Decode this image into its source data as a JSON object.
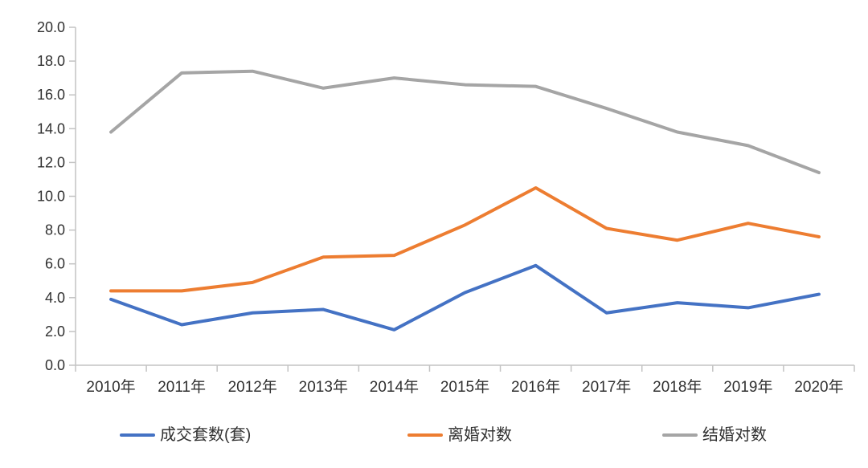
{
  "chart_data": {
    "type": "line",
    "title": "",
    "categories": [
      "2010年",
      "2011年",
      "2012年",
      "2013年",
      "2014年",
      "2015年",
      "2016年",
      "2017年",
      "2018年",
      "2019年",
      "2020年"
    ],
    "series": [
      {
        "name": "成交套数(套)",
        "color": "#4472C4",
        "values": [
          3.9,
          2.4,
          3.1,
          3.3,
          2.1,
          4.3,
          5.9,
          3.1,
          3.7,
          3.4,
          4.2
        ]
      },
      {
        "name": "离婚对数",
        "color": "#ED7D31",
        "values": [
          4.4,
          4.4,
          4.9,
          6.4,
          6.5,
          8.3,
          10.5,
          8.1,
          7.4,
          8.4,
          7.6
        ]
      },
      {
        "name": "结婚对数",
        "color": "#A5A5A5",
        "values": [
          13.8,
          17.3,
          17.4,
          16.4,
          17.0,
          16.6,
          16.5,
          15.2,
          13.8,
          13.0,
          11.4
        ]
      }
    ],
    "xlabel": "",
    "ylabel": "",
    "ylim": [
      0,
      20
    ],
    "ytick_step": 2,
    "ytick_labels": [
      "20.0",
      "18.0",
      "16.0",
      "14.0",
      "12.0",
      "10.0",
      "8.0",
      "6.0",
      "4.0",
      "2.0",
      "0.0"
    ],
    "grid": false,
    "legend_position": "bottom",
    "axis_color": "#C3C3C3",
    "label_color": "#303030"
  },
  "legend": {
    "items": [
      {
        "label": "成交套数(套)"
      },
      {
        "label": "离婚对数"
      },
      {
        "label": "结婚对数"
      }
    ]
  }
}
